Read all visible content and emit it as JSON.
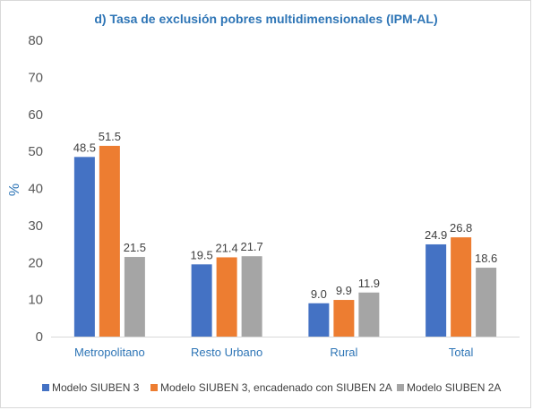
{
  "chart_data": {
    "type": "bar",
    "title": "d) Tasa de exclusión pobres multidimensionales (IPM-AL)",
    "ylabel": "%",
    "xlabel": "",
    "ylim": [
      0,
      80
    ],
    "yticks": [
      0,
      10,
      20,
      30,
      40,
      50,
      60,
      70,
      80
    ],
    "grid": false,
    "legend_position": "bottom",
    "categories": [
      "Metropolitano",
      "Resto Urbano",
      "Rural",
      "Total"
    ],
    "series": [
      {
        "name": "Modelo SIUBEN 3",
        "color": "#4472c4",
        "values": [
          48.5,
          19.5,
          9.0,
          24.9
        ],
        "labels": [
          "48.5",
          "19.5",
          "9.0",
          "24.9"
        ]
      },
      {
        "name": "Modelo SIUBEN 3, encadenado con SIUBEN 2A",
        "color": "#ed7d31",
        "values": [
          51.5,
          21.4,
          9.9,
          26.8
        ],
        "labels": [
          "51.5",
          "21.4",
          "9.9",
          "26.8"
        ]
      },
      {
        "name": "Modelo SIUBEN 2A",
        "color": "#a5a5a5",
        "values": [
          21.5,
          21.7,
          11.9,
          18.6
        ],
        "labels": [
          "21.5",
          "21.7",
          "11.9",
          "18.6"
        ]
      }
    ]
  }
}
